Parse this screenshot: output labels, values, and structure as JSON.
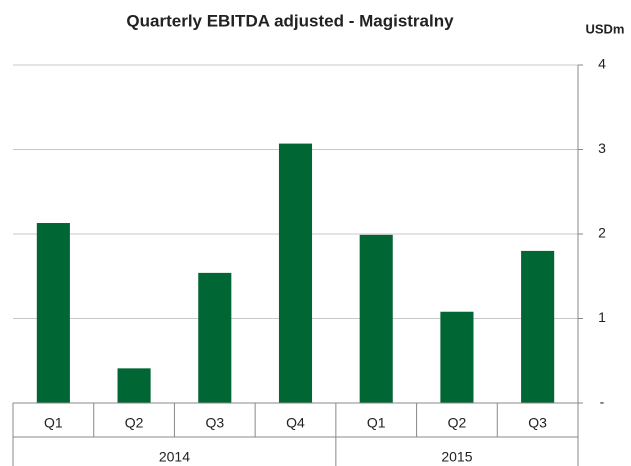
{
  "chart_data": {
    "type": "bar",
    "title": "Quarterly EBITDA adjusted - Magistralny",
    "unit": "USDm",
    "groups": [
      {
        "name": "2014",
        "categories": [
          "Q1",
          "Q2",
          "Q3",
          "Q4"
        ]
      },
      {
        "name": "2015",
        "categories": [
          "Q1",
          "Q2",
          "Q3"
        ]
      }
    ],
    "values": [
      2.13,
      0.41,
      1.54,
      3.07,
      1.99,
      1.08,
      1.8
    ],
    "color": "#006633",
    "ylim": [
      0,
      4
    ],
    "yticks": [
      {
        "value": 0,
        "label": "-"
      },
      1,
      2,
      3,
      4
    ],
    "grid": true,
    "y_axis_side": "right"
  }
}
